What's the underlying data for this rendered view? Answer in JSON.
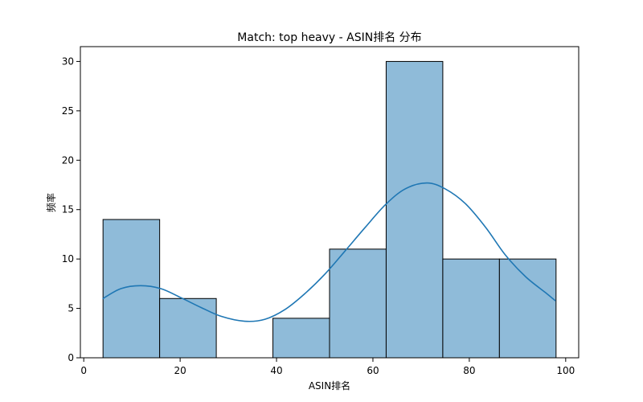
{
  "chart_data": {
    "type": "bar",
    "title": "Match: top heavy - ASIN排名 分布",
    "xlabel": "ASIN排名",
    "ylabel": "频率",
    "xlim": [
      -0.7,
      102.7
    ],
    "ylim": [
      0,
      31.5
    ],
    "xticks": [
      0,
      20,
      40,
      60,
      80,
      100
    ],
    "yticks": [
      0,
      5,
      10,
      15,
      20,
      25,
      30
    ],
    "bins": [
      4,
      15.75,
      27.5,
      39.25,
      51,
      62.75,
      74.5,
      86.25,
      98
    ],
    "counts": [
      14,
      6,
      0,
      4,
      11,
      30,
      10,
      10
    ],
    "kde": {
      "x": [
        4,
        7.7,
        11.8,
        16,
        20.1,
        24.3,
        28.5,
        33.4,
        37.6,
        41.8,
        45.9,
        50.1,
        54.2,
        58.4,
        62.6,
        66.7,
        71.2,
        75,
        79.2,
        83.4,
        87.5,
        91.7,
        95.8,
        97.8
      ],
      "y": [
        6.0,
        7.0,
        7.3,
        7.0,
        6.1,
        5.1,
        4.2,
        3.7,
        3.9,
        4.9,
        6.5,
        8.5,
        10.8,
        13.2,
        15.5,
        17.1,
        17.7,
        17.1,
        15.6,
        13.2,
        10.4,
        8.2,
        6.6,
        5.8
      ]
    },
    "grid": false,
    "colors": {
      "bar_fill": "#8fbbd9",
      "bar_edge": "#000000",
      "kde_line": "#1f77b4",
      "axes": "#000000"
    }
  }
}
